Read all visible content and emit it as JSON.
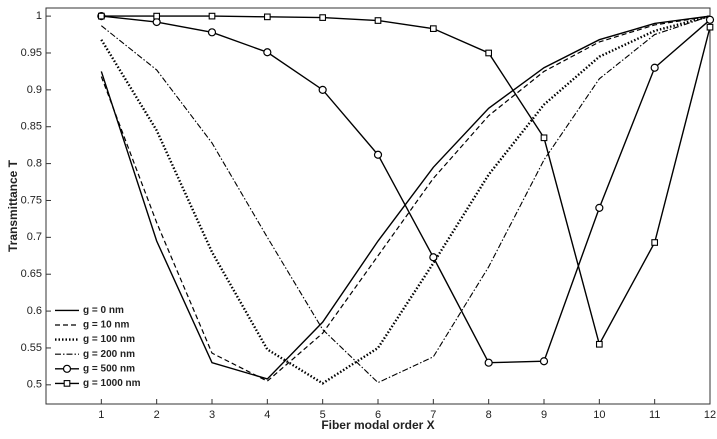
{
  "chart_data": {
    "type": "line",
    "x_label": "Fiber modal order X",
    "y_label": "Transmittance T",
    "x": [
      1,
      2,
      3,
      4,
      5,
      6,
      7,
      8,
      9,
      10,
      11,
      12
    ],
    "series": [
      {
        "name": "g = 0 nm",
        "color": "#000000",
        "style": "solid",
        "marker": "none",
        "values": [
          0.925,
          0.695,
          0.53,
          0.508,
          0.585,
          0.695,
          0.795,
          0.875,
          0.93,
          0.968,
          0.99,
          1
        ]
      },
      {
        "name": "g = 10 nm",
        "color": "#000000",
        "style": "dashed",
        "marker": "none",
        "values": [
          0.918,
          0.72,
          0.543,
          0.505,
          0.57,
          0.675,
          0.78,
          0.865,
          0.925,
          0.965,
          0.988,
          1
        ]
      },
      {
        "name": "g = 100 nm",
        "color": "#000000",
        "style": "dotted",
        "marker": "none",
        "values": [
          0.968,
          0.845,
          0.68,
          0.548,
          0.502,
          0.55,
          0.665,
          0.785,
          0.88,
          0.945,
          0.98,
          1
        ]
      },
      {
        "name": "g = 200 nm",
        "color": "#000000",
        "style": "dashdot",
        "marker": "none",
        "values": [
          0.987,
          0.927,
          0.828,
          0.7,
          0.575,
          0.503,
          0.538,
          0.66,
          0.805,
          0.915,
          0.975,
          1
        ]
      },
      {
        "name": "g = 500 nm",
        "color": "#000000",
        "style": "solid",
        "marker": "circle",
        "values": [
          1,
          0.992,
          0.978,
          0.951,
          0.9,
          0.812,
          0.673,
          0.53,
          0.532,
          0.74,
          0.93,
          0.995
        ]
      },
      {
        "name": "g = 1000 nm",
        "color": "#000000",
        "style": "solid",
        "marker": "square",
        "values": [
          1,
          1,
          1,
          0.999,
          0.998,
          0.994,
          0.983,
          0.95,
          0.835,
          0.555,
          0.693,
          0.985
        ]
      }
    ],
    "xlim": [
      0,
      12
    ],
    "xticks": [
      1,
      2,
      3,
      4,
      5,
      6,
      7,
      8,
      9,
      10,
      11,
      12
    ],
    "ylim": [
      0.474,
      1.011
    ],
    "yticks": [
      0.5,
      0.55,
      0.6,
      0.65,
      0.7,
      0.75,
      0.8,
      0.85,
      0.9,
      0.95,
      1
    ],
    "grid": false,
    "legend": "lower-left"
  }
}
